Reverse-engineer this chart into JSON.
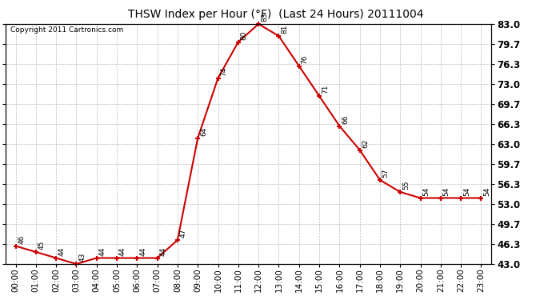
{
  "title": "THSW Index per Hour (°F)  (Last 24 Hours) 20111004",
  "copyright": "Copyright 2011 Cartronics.com",
  "hours": [
    "00:00",
    "01:00",
    "02:00",
    "03:00",
    "04:00",
    "05:00",
    "06:00",
    "07:00",
    "08:00",
    "09:00",
    "10:00",
    "11:00",
    "12:00",
    "13:00",
    "14:00",
    "15:00",
    "16:00",
    "17:00",
    "18:00",
    "19:00",
    "20:00",
    "21:00",
    "22:00",
    "23:00"
  ],
  "values": [
    46,
    45,
    44,
    43,
    44,
    44,
    44,
    44,
    47,
    64,
    74,
    80,
    83,
    81,
    76,
    71,
    66,
    62,
    57,
    55,
    54,
    54,
    54,
    54
  ],
  "ylim_min": 43.0,
  "ylim_max": 83.0,
  "yticks": [
    43.0,
    46.3,
    49.7,
    53.0,
    56.3,
    59.7,
    63.0,
    66.3,
    69.7,
    73.0,
    76.3,
    79.7,
    83.0
  ],
  "line_color": "#cc0000",
  "marker_color": "#cc0000",
  "bg_color": "#ffffff",
  "grid_color": "#bbbbbb",
  "title_fontsize": 10,
  "copyright_fontsize": 6.5,
  "label_fontsize": 6.5,
  "tick_fontsize": 8.5
}
